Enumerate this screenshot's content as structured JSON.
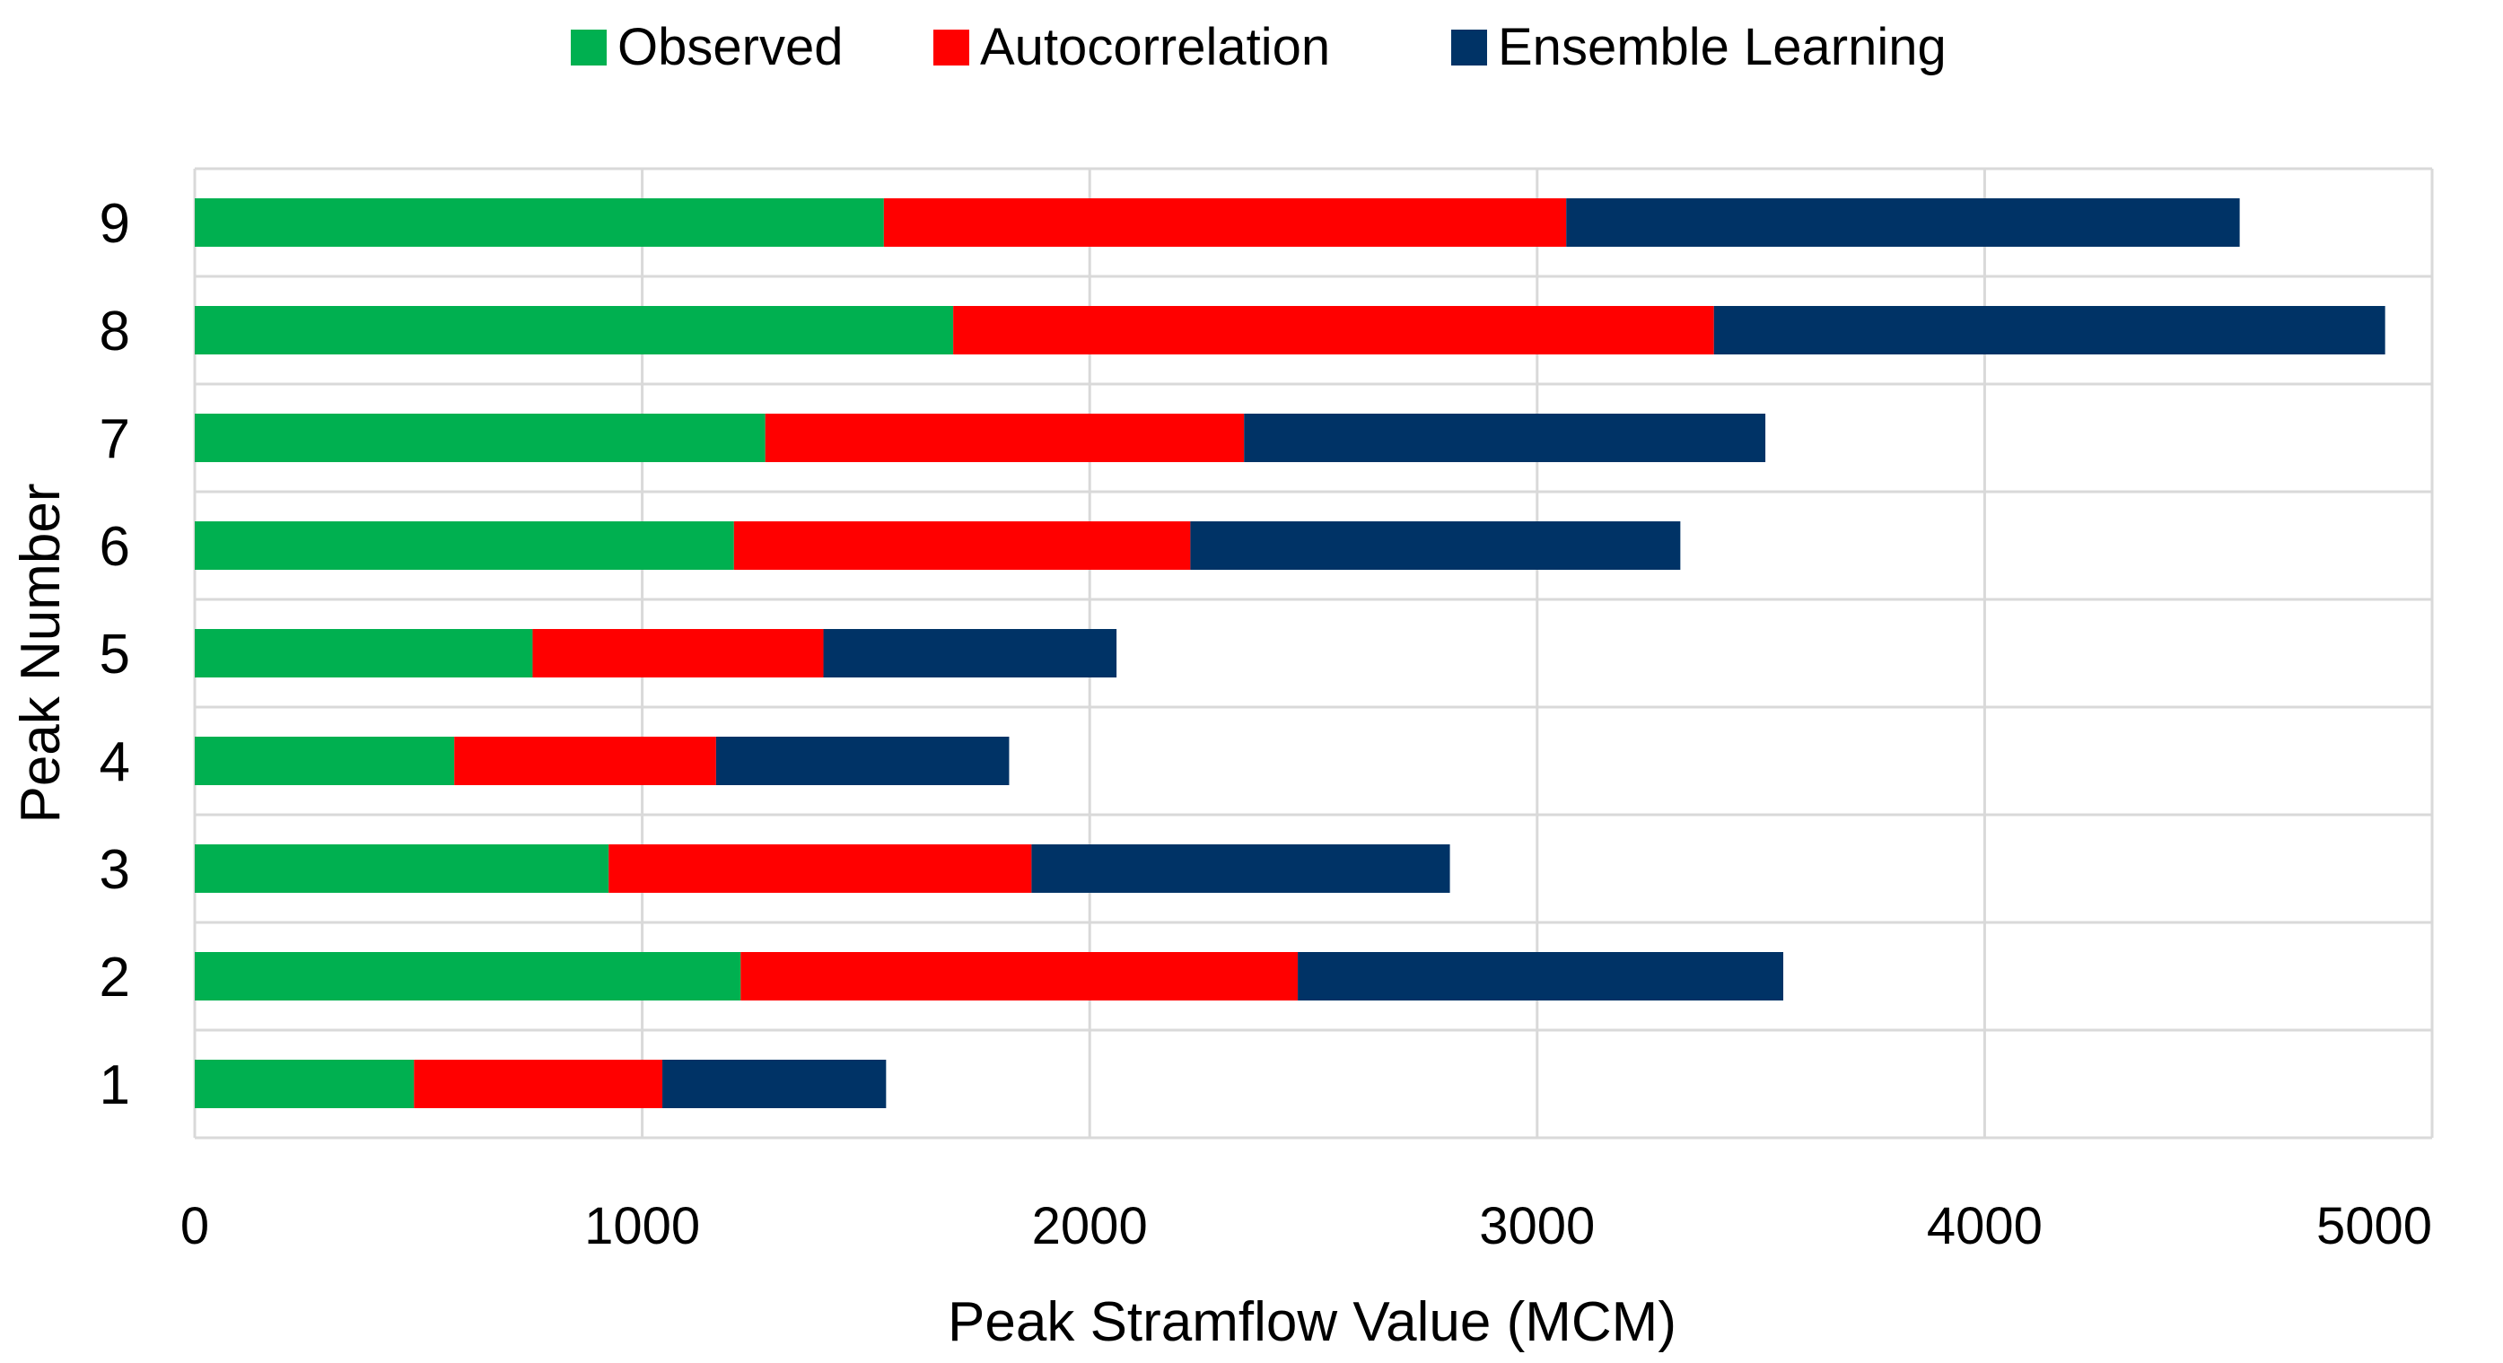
{
  "chart_data": {
    "type": "bar",
    "orientation": "horizontal",
    "stacked": true,
    "title": "",
    "xlabel": "Peak Stramflow Value (MCM)",
    "ylabel": "Peak Number",
    "xlim": [
      0,
      5000
    ],
    "xticks": [
      "0",
      "1000",
      "2000",
      "3000",
      "4000",
      "5000"
    ],
    "categories": [
      "1",
      "2",
      "3",
      "4",
      "5",
      "6",
      "7",
      "8",
      "9"
    ],
    "series": [
      {
        "name": "Observed",
        "color": "#00b050",
        "values": [
          490,
          1220,
          925,
          580,
          755,
          1205,
          1275,
          1695,
          1540
        ]
      },
      {
        "name": "Autocorrelation",
        "color": "#ff0000",
        "values": [
          555,
          1245,
          945,
          585,
          650,
          1020,
          1070,
          1700,
          1525
        ]
      },
      {
        "name": "Ensemble Learning",
        "color": "#003366",
        "values": [
          500,
          1085,
          935,
          655,
          655,
          1095,
          1165,
          1500,
          1505
        ]
      }
    ],
    "grid": true,
    "legend_position": "top"
  }
}
